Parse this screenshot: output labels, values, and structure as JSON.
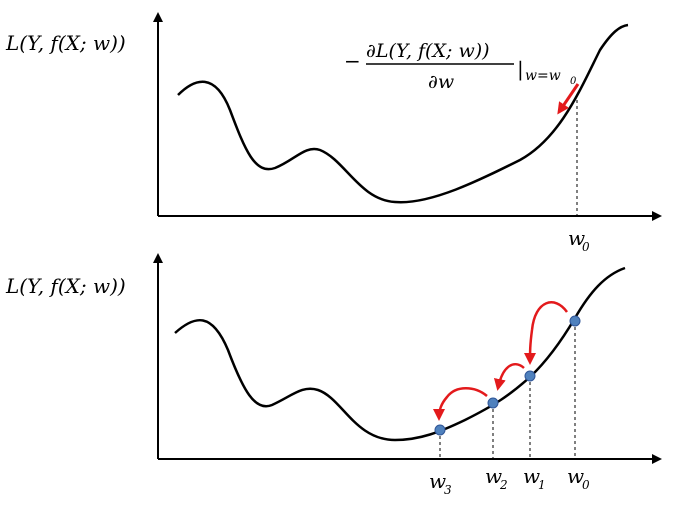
{
  "top_panel": {
    "ylabel": "L(Y, f(X; w))",
    "gradient": {
      "minus": "−",
      "numerator": "∂L(Y, f(X; w))",
      "denominator": "∂w",
      "eval_bar": "|",
      "eval_at": "w=w",
      "eval_sub": "0"
    },
    "point_label": {
      "base": "w",
      "sub": "0"
    }
  },
  "bottom_panel": {
    "ylabel": "L(Y, f(X; w))",
    "point_labels": [
      {
        "base": "w",
        "sub": "3"
      },
      {
        "base": "w",
        "sub": "2"
      },
      {
        "base": "w",
        "sub": "1"
      },
      {
        "base": "w",
        "sub": "0"
      }
    ]
  },
  "colors": {
    "curve": "#000000",
    "arrow": "#e31a1c",
    "point": "#4f81bd",
    "point_edge": "#2f5597",
    "guide": "#000000"
  }
}
